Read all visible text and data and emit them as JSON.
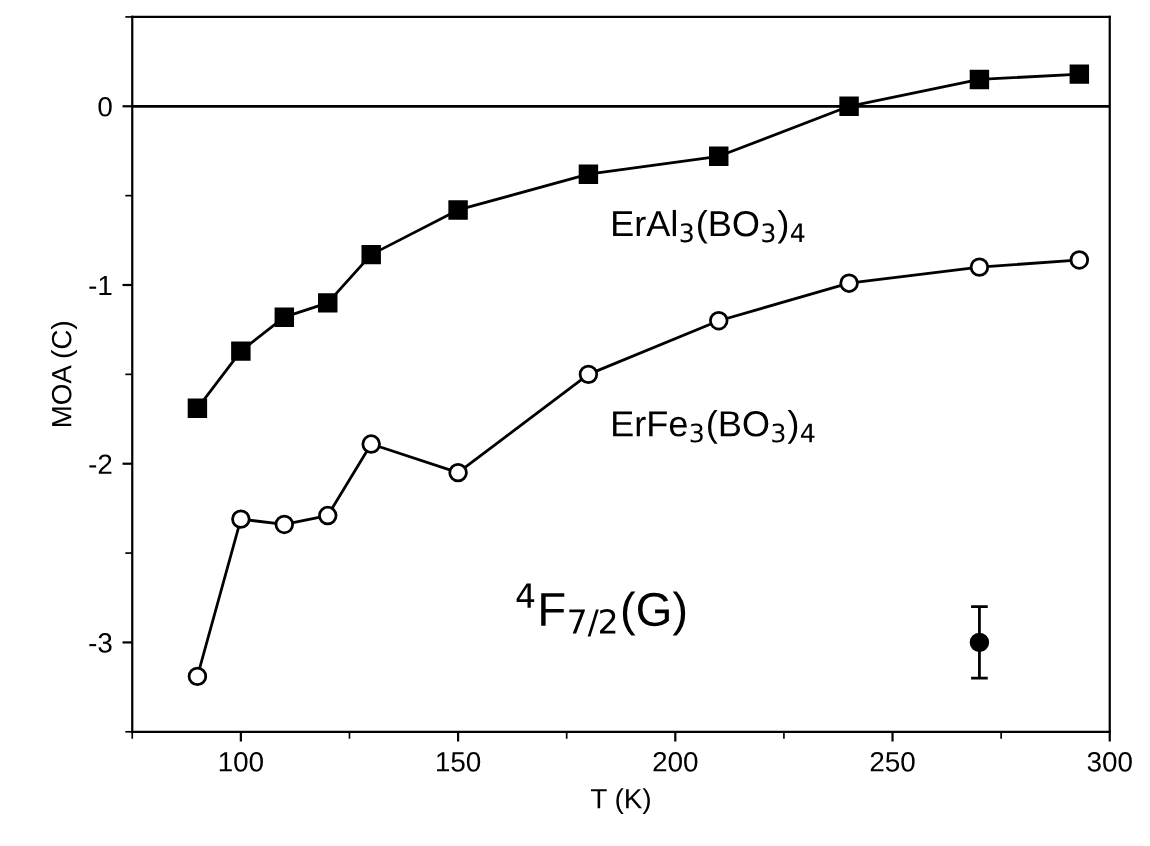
{
  "chart_data": {
    "type": "line",
    "xlabel": "T (K)",
    "ylabel": "MOA (C)",
    "x": [
      90,
      100,
      110,
      120,
      130,
      150,
      180,
      210,
      240,
      270,
      293
    ],
    "series": [
      {
        "name": "ErAl$_{3}$(BO$_{3}$)$_{4}$",
        "color": "#000000",
        "marker": "square",
        "values": [
          -1.69,
          -1.37,
          -1.18,
          -1.1,
          -0.83,
          -0.58,
          -0.38,
          -0.28,
          0.0,
          0.15,
          0.18
        ]
      },
      {
        "name": "ErFe$_{3}$(BO$_{3}$)$_{4}$",
        "color": "#000000",
        "marker": "circle",
        "values": [
          -3.19,
          -2.31,
          -2.34,
          -2.29,
          -1.89,
          -2.05,
          -1.5,
          -1.2,
          -0.99,
          -0.9,
          -0.86
        ]
      },
      {
        "type": "scatter",
        "color": "#000000",
        "marker": "circle",
        "x": [
          270
        ],
        "values": [
          -3.0
        ],
        "errors": [
          0.2
        ]
      }
    ],
    "annotations": [
      "$^{4}$F$_{7/2}$(G)"
    ],
    "ref_lines": [
      {
        "axis": "y",
        "value": 0,
        "color": "#000000"
      }
    ],
    "xlim": [
      75,
      300
    ],
    "xticks": [
      100,
      150,
      200,
      250,
      300
    ],
    "ylim": [
      -3.5,
      0.5
    ],
    "yticks": [
      -3,
      -2,
      -1,
      0
    ],
    "grid": false,
    "legend": false
  }
}
